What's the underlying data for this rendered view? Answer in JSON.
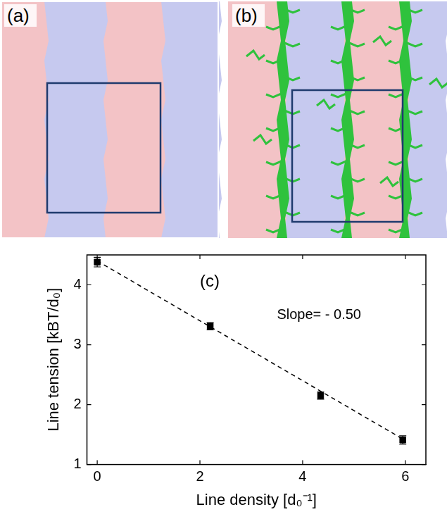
{
  "panels": [
    {
      "label": "(a)"
    },
    {
      "label": "(b)"
    }
  ],
  "chart_data": {
    "type": "scatter",
    "x_label": "Line density [d₀⁻¹]",
    "y_label": "Line tension [kBT/d₀]",
    "annotations": [
      "(c)",
      "Slope= - 0.50"
    ],
    "series": [
      {
        "type": "scatter",
        "color": "#000000",
        "marker": "square",
        "x": [
          0,
          2.2,
          4.35,
          5.95
        ],
        "values": [
          4.38,
          3.31,
          2.15,
          1.41
        ],
        "errors": [
          0.08,
          0.06,
          0.06,
          0.07
        ]
      },
      {
        "type": "line",
        "color": "#000000",
        "line_style": "dashed",
        "x": [
          0,
          6
        ],
        "values": [
          4.4,
          1.4
        ]
      }
    ],
    "xlim": [
      -0.2,
      6.4
    ],
    "xticks": [
      0,
      2,
      4,
      6
    ],
    "ylim": [
      1,
      4.5
    ],
    "yticks": [
      1,
      2,
      3,
      4
    ],
    "grid": false
  }
}
